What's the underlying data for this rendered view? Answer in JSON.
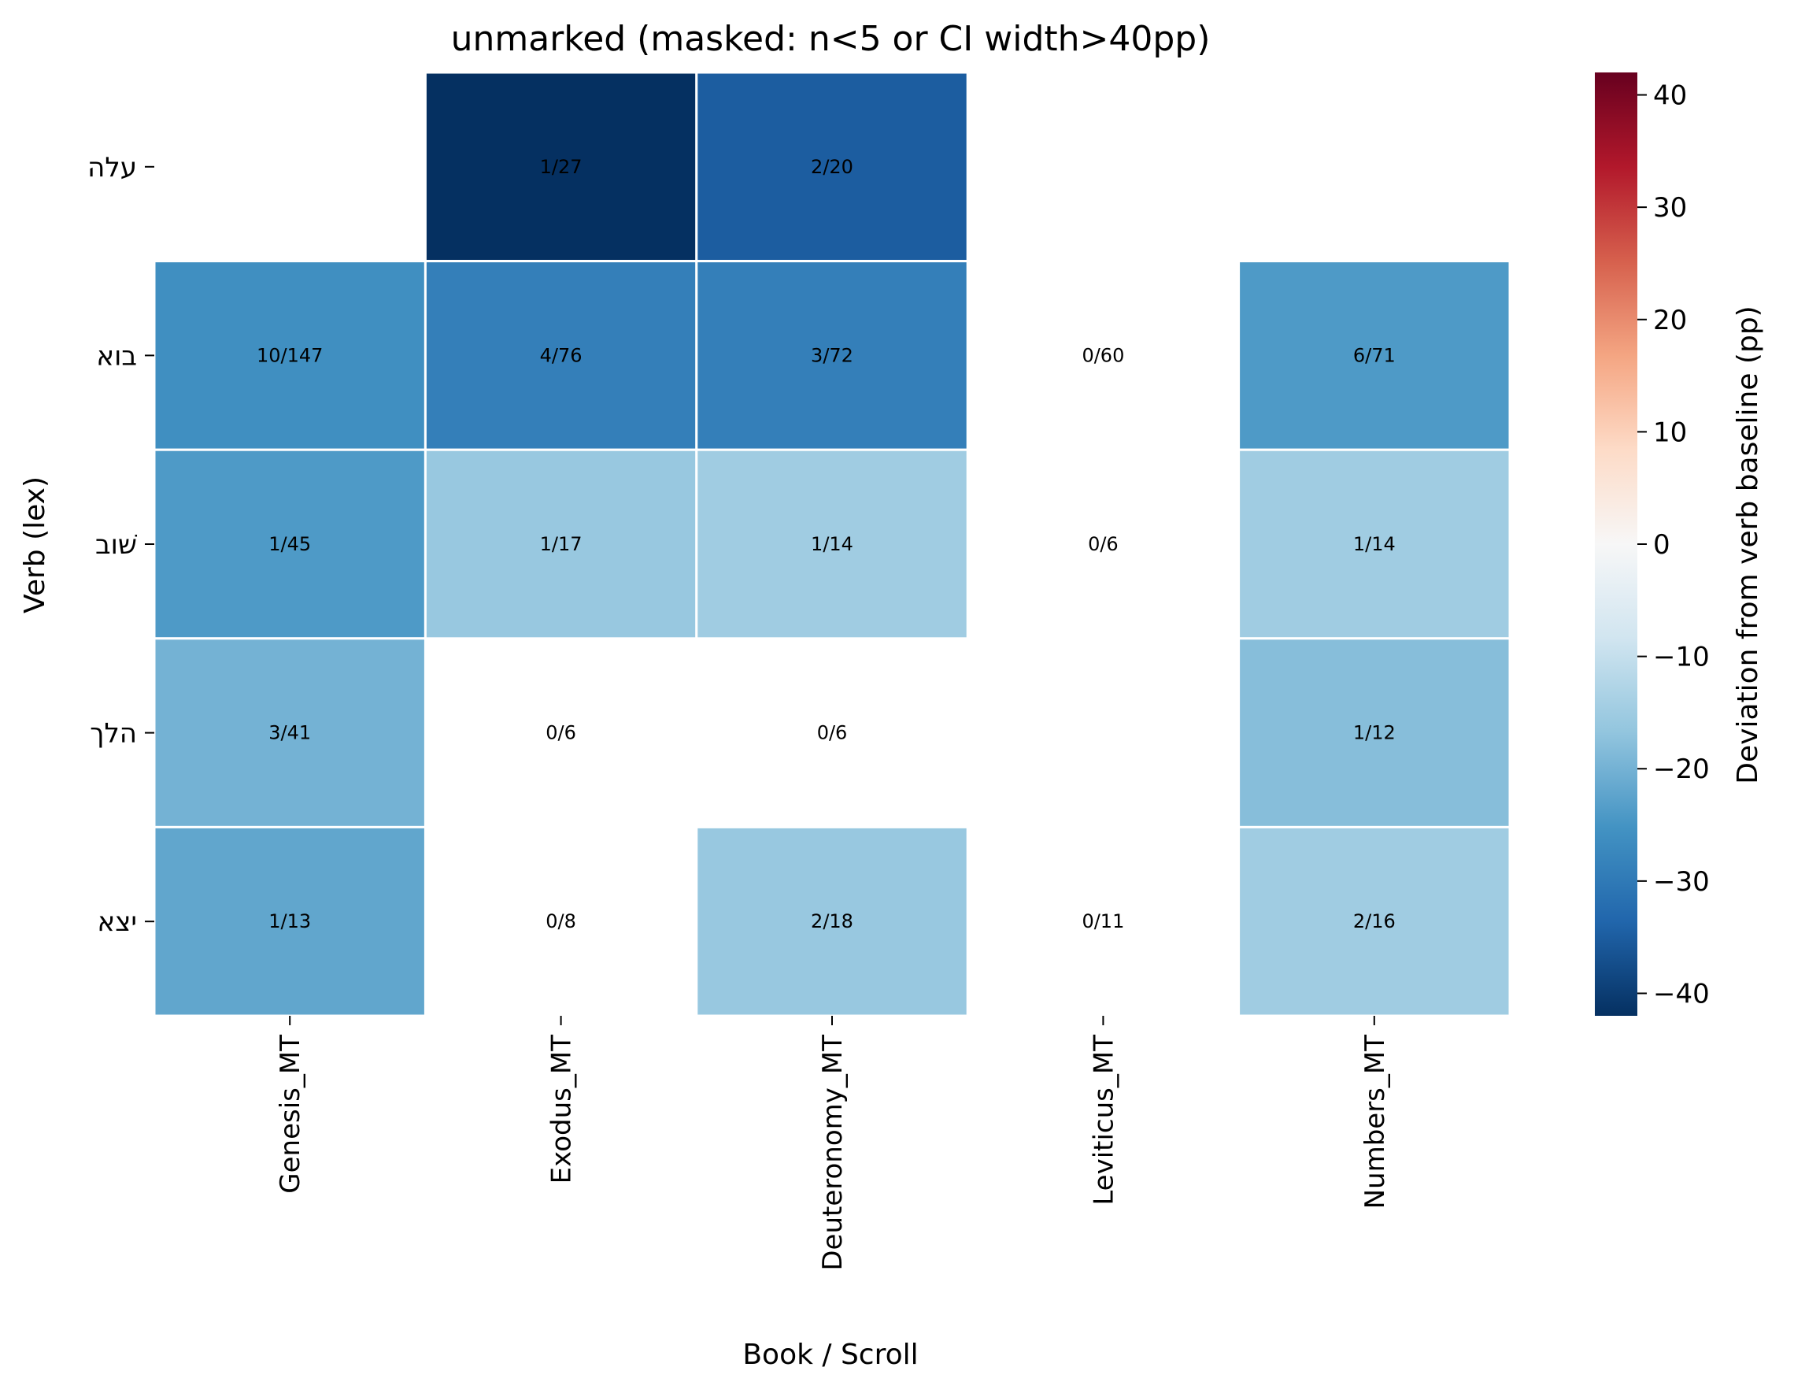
{
  "chart_data": {
    "type": "heatmap",
    "title": "unmarked (masked: n<5 or CI width>40pp)",
    "xlabel": "Book / Scroll",
    "ylabel": "Verb (lex)",
    "columns": [
      "Genesis_MT",
      "Exodus_MT",
      "Deuteronomy_MT",
      "Leviticus_MT",
      "Numbers_MT"
    ],
    "rows": [
      "עלה",
      "בוא",
      "שׁוב",
      "הלך",
      "יצא"
    ],
    "values": [
      [
        null,
        -42,
        -35,
        null,
        null
      ],
      [
        -26,
        -29,
        -29,
        null,
        -24
      ],
      [
        -24,
        -16,
        -15,
        null,
        -15
      ],
      [
        -20,
        null,
        null,
        null,
        -18
      ],
      [
        -22,
        null,
        -16,
        null,
        -15
      ]
    ],
    "labels": [
      [
        "",
        "1/27",
        "2/20",
        "",
        ""
      ],
      [
        "10/147",
        "4/76",
        "3/72",
        "0/60",
        "6/71"
      ],
      [
        "1/45",
        "1/17",
        "1/14",
        "0/6",
        "1/14"
      ],
      [
        "3/41",
        "0/6",
        "0/6",
        "",
        "1/12"
      ],
      [
        "1/13",
        "0/8",
        "2/18",
        "0/11",
        "2/16"
      ]
    ],
    "colorbar": {
      "label": "Deviation from verb baseline (pp)",
      "vmin": -42,
      "vmax": 42,
      "ticks": [
        -40,
        -30,
        -20,
        -10,
        0,
        10,
        20,
        30,
        40
      ],
      "colormap": "RdBu_r"
    },
    "grid": false
  }
}
